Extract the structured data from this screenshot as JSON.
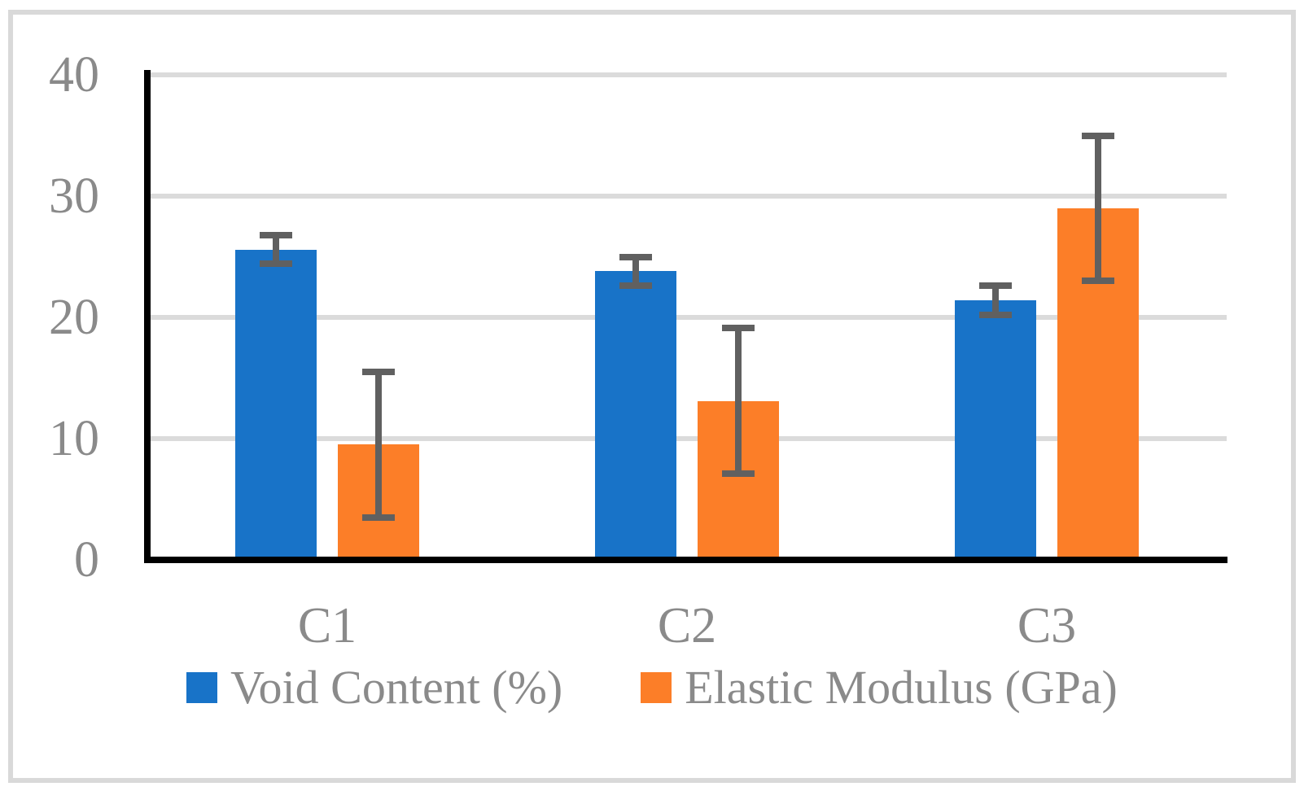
{
  "chart_data": {
    "type": "bar",
    "categories": [
      "C1",
      "C2",
      "C3"
    ],
    "series": [
      {
        "name": "Void Content (%)",
        "color": "#1873C8",
        "values": [
          25.6,
          23.8,
          21.4
        ],
        "error_bars": [
          1.2,
          1.2,
          1.2
        ]
      },
      {
        "name": "Elastic Modulus (GPa)",
        "color": "#FC7E28",
        "values": [
          9.5,
          13.1,
          29.0
        ],
        "error_bars": [
          6.0,
          6.0,
          6.0
        ]
      }
    ],
    "title": "",
    "xlabel": "",
    "ylabel": "",
    "ylim": [
      0,
      40
    ],
    "yticks": [
      0,
      10,
      20,
      30,
      40
    ],
    "ytick_labels": [
      "0",
      "10",
      "20",
      "30",
      "40"
    ],
    "grid": "horizontal",
    "legend_position": "bottom",
    "colors": {
      "error_bar": "#606060",
      "gridline": "#DBDBDB",
      "axis": "#000000",
      "text": "#8A8A8A",
      "frame_border": "#D9D9D9",
      "background": "#FFFFFF"
    }
  }
}
